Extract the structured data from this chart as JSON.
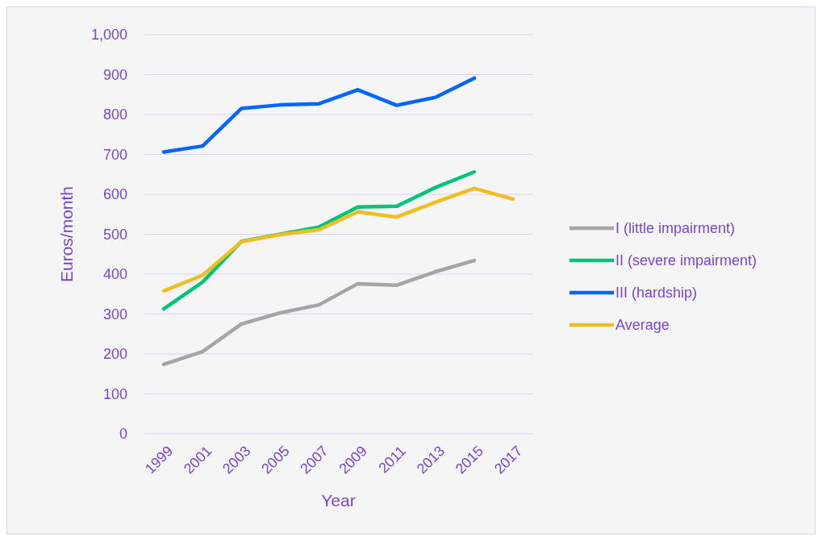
{
  "chart_data": {
    "type": "line",
    "xlabel": "Year",
    "ylabel": "Euros/month",
    "categories": [
      "1999",
      "2001",
      "2003",
      "2005",
      "2007",
      "2009",
      "2011",
      "2013",
      "2015",
      "2017"
    ],
    "ylim": [
      0,
      1000
    ],
    "yticks": [
      0,
      100,
      200,
      300,
      400,
      500,
      600,
      700,
      800,
      900,
      {
        "value": 1000,
        "label": "1,000"
      }
    ],
    "grid": "y",
    "legend": "right",
    "series": [
      {
        "name": "I (little impairment)",
        "color": "#a5a5a8",
        "values": [
          174,
          206,
          275,
          303,
          323,
          376,
          372,
          406,
          434,
          null
        ]
      },
      {
        "name": "II (severe impairment)",
        "color": "#00c47a",
        "values": [
          313,
          380,
          482,
          500,
          518,
          568,
          570,
          617,
          656,
          null
        ]
      },
      {
        "name": "III (hardship)",
        "color": "#0066ff",
        "values": [
          706,
          721,
          815,
          824,
          827,
          862,
          823,
          843,
          891,
          null
        ]
      },
      {
        "name": "Average",
        "color": "#f0be1e",
        "values": [
          358,
          397,
          481,
          499,
          511,
          556,
          543,
          580,
          615,
          588
        ]
      }
    ]
  }
}
